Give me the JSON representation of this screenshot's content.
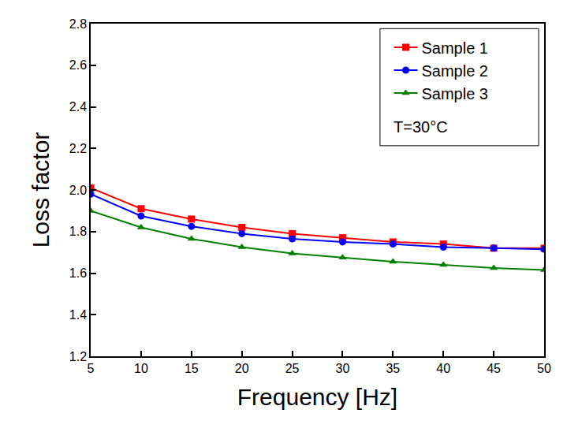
{
  "chart_data": {
    "type": "line",
    "x_label": "Frequency [Hz]",
    "y_label": "Loss factor",
    "x": [
      5,
      10,
      15,
      20,
      25,
      30,
      35,
      40,
      45,
      50
    ],
    "series": [
      {
        "name": "Sample 1",
        "color": "#ff0000",
        "marker": "square",
        "line_style": "solid",
        "values": [
          2.01,
          1.91,
          1.86,
          1.82,
          1.79,
          1.77,
          1.75,
          1.74,
          1.72,
          1.72
        ]
      },
      {
        "name": "Sample 2",
        "color": "#0000ff",
        "marker": "circle",
        "line_style": "solid",
        "values": [
          1.98,
          1.875,
          1.825,
          1.79,
          1.765,
          1.75,
          1.74,
          1.725,
          1.72,
          1.715
        ]
      },
      {
        "name": "Sample 3",
        "color": "#008000",
        "marker": "triangle-up",
        "line_style": "solid",
        "values": [
          1.9,
          1.82,
          1.765,
          1.725,
          1.695,
          1.675,
          1.655,
          1.64,
          1.625,
          1.615
        ]
      }
    ],
    "annotations": [
      "T=30°C"
    ],
    "xlim": [
      5,
      50
    ],
    "xticks": [
      5,
      10,
      15,
      20,
      25,
      30,
      35,
      40,
      45,
      50
    ],
    "ylim": [
      1.2,
      2.8
    ],
    "yticks": [
      1.2,
      1.4,
      1.6,
      1.8,
      {
        "value": 2,
        "label": "2.0"
      },
      2.2,
      2.4,
      2.6,
      2.8
    ],
    "grid": false,
    "legend": "top right"
  }
}
